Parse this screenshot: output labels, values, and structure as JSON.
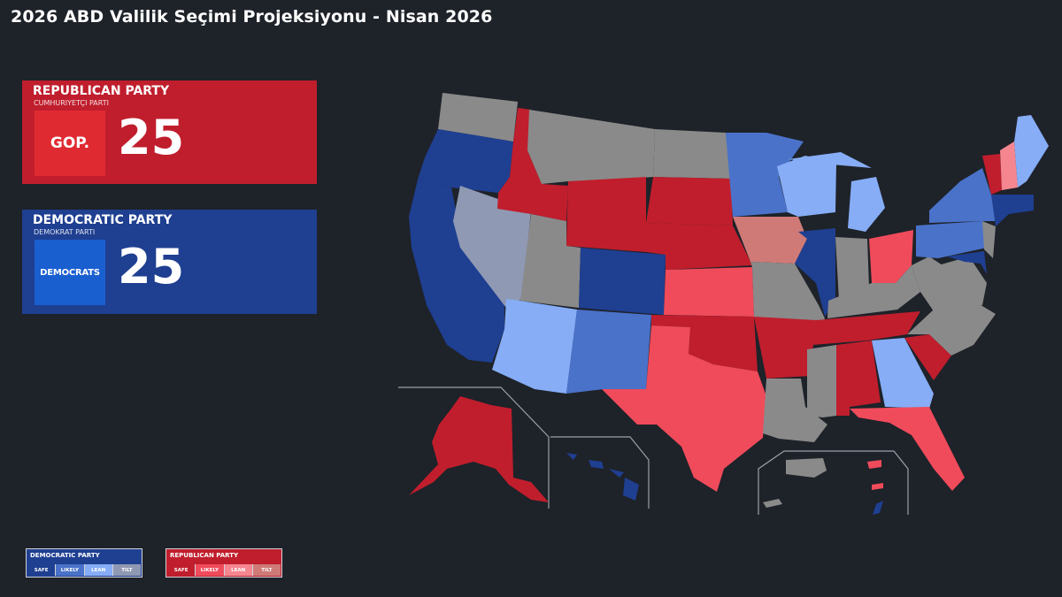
{
  "title": "2026 ABD Valilik Seçimi Projeksiyonu - Nisan 2026",
  "parties": {
    "republican": {
      "name": "REPUBLICAN PARTY",
      "subtitle": "CUMHURIYETÇI PARTI",
      "logo": "GOP.",
      "seats": "25"
    },
    "democratic": {
      "name": "DEMOCRATIC PARTY",
      "subtitle": "DEMOKRAT PARTI",
      "logo": "DEMOCRATS",
      "seats": "25"
    }
  },
  "legend": {
    "democratic": {
      "title": "DEMOCRATIC PARTY",
      "levels": [
        "SAFE",
        "LIKELY",
        "LEAN",
        "TILT"
      ],
      "colors": [
        "#1f3f91",
        "#4a72c9",
        "#86adf6",
        "#8f99b3"
      ]
    },
    "republican": {
      "title": "REPUBLICAN PARTY",
      "levels": [
        "SAFE",
        "LIKELY",
        "LEAN",
        "TILT"
      ],
      "colors": [
        "#c01e2d",
        "#f04b5b",
        "#f58690",
        "#cf7a77"
      ]
    }
  },
  "colors": {
    "background": "#1e2229",
    "no_election": "#8a8a8a",
    "dem_safe": "#1f3f91",
    "dem_likely": "#4a72c9",
    "dem_lean": "#86adf6",
    "dem_tilt": "#8f99b3",
    "rep_safe": "#c01e2d",
    "rep_likely": "#f04b5b",
    "rep_lean": "#f58690",
    "rep_tilt": "#cf7a77"
  }
}
